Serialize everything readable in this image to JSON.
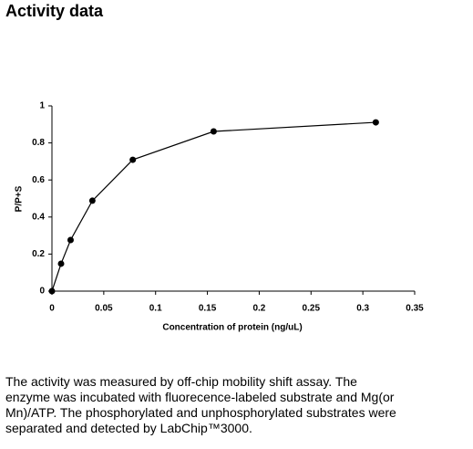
{
  "header": {
    "title": "Activity data"
  },
  "chart_data": {
    "type": "line",
    "x_label": "Concentration of protein (ng/uL)",
    "y_label": "P/P+S",
    "x": [
      0,
      0.0088,
      0.018,
      0.039,
      0.078,
      0.156,
      0.3125
    ],
    "series": [
      {
        "color": "#000000",
        "values": [
          0,
          0.148,
          0.276,
          0.488,
          0.709,
          0.862,
          0.911
        ]
      }
    ],
    "xlim": [
      0,
      0.35
    ],
    "xticks": [
      0,
      0.05,
      0.1,
      0.15,
      0.2,
      0.25,
      0.3,
      0.35
    ],
    "ylim": [
      0,
      1
    ],
    "yticks": [
      0,
      0.2,
      0.4,
      0.6,
      0.8,
      1
    ],
    "grid": false
  },
  "paragraph": {
    "lines": [
      "The activity was measured by off-chip mobility shift assay. The",
      "enzyme was incubated with fluorecence-labeled  substrate and Mg(or",
      "Mn)/ATP. The phosphorylated and unphosphorylated substrates were",
      "separated and detected by LabChip™3000."
    ]
  }
}
